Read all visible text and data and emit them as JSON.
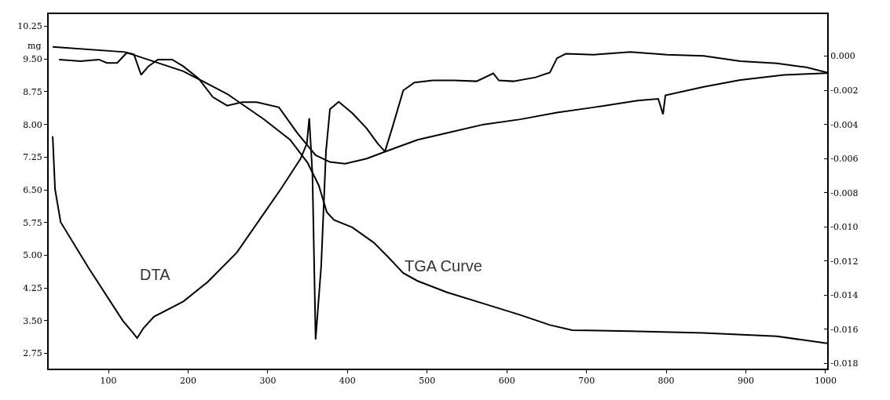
{
  "chart_data": {
    "type": "line",
    "ylabel": "mg",
    "xlim": [
      25,
      1002
    ],
    "xticks": [
      100,
      200,
      300,
      400,
      500,
      600,
      700,
      800,
      900,
      1000
    ],
    "ylim": [
      2.4,
      10.53
    ],
    "yticks": [
      10.25,
      {
        "value": 9.5,
        "label": "9.50"
      },
      8.75,
      {
        "value": 8,
        "label": "8.00"
      },
      7.25,
      {
        "value": 6.5,
        "label": "6.50"
      },
      5.75,
      {
        "value": 5,
        "label": "5.00"
      },
      4.25,
      {
        "value": 3.5,
        "label": "3.50"
      },
      2.75
    ],
    "y2lim": [
      -0.0183,
      0.00246
    ],
    "y2ticks": [
      {
        "value": 0,
        "label": "0.000"
      },
      {
        "value": -0.002,
        "label": "-0.002"
      },
      {
        "value": -0.004,
        "label": "-0.004"
      },
      {
        "value": -0.006,
        "label": "-0.006"
      },
      {
        "value": -0.008,
        "label": "-0.008"
      },
      {
        "value": -0.01,
        "label": "-0.010"
      },
      {
        "value": -0.012,
        "label": "-0.012"
      },
      {
        "value": -0.014,
        "label": "-0.014"
      },
      {
        "value": -0.016,
        "label": "-0.016"
      },
      {
        "value": -0.018,
        "label": "-0.018"
      }
    ],
    "grid": false,
    "marker": "none",
    "line_style": "solid",
    "annotations": [
      "DTA",
      "TGA Curve"
    ],
    "series": [
      {
        "color": "#000000",
        "x": [
          30,
          121,
          194,
          249,
          295,
          328,
          350,
          364,
          374,
          383,
          406,
          433,
          452,
          470,
          488,
          525,
          571,
          617,
          654,
          682,
          755,
          847,
          939,
          1002
        ],
        "values": [
          9.78,
          9.66,
          9.22,
          8.7,
          8.12,
          7.65,
          7.12,
          6.6,
          5.99,
          5.81,
          5.64,
          5.29,
          4.94,
          4.59,
          4.41,
          4.15,
          3.89,
          3.63,
          3.4,
          3.28,
          3.26,
          3.22,
          3.14,
          2.98
        ]
      },
      {
        "color": "#000000",
        "x": [
          30,
          33,
          40,
          75,
          118,
          130,
          136,
          144,
          157,
          194,
          224,
          261,
          316,
          341,
          349,
          352,
          356,
          360,
          367,
          373,
          378,
          389,
          406,
          424,
          438,
          447,
          456,
          470,
          484,
          507,
          534,
          562,
          583,
          590,
          608,
          636,
          654,
          663,
          674,
          709,
          755,
          801,
          847,
          893,
          939,
          976,
          1002
        ],
        "values": [
          7.73,
          6.51,
          5.76,
          4.71,
          3.5,
          3.24,
          3.1,
          3.33,
          3.59,
          3.94,
          4.38,
          5.06,
          6.51,
          7.21,
          7.56,
          8.14,
          6.86,
          3.07,
          4.76,
          7.38,
          8.35,
          8.52,
          8.26,
          7.91,
          7.56,
          7.38,
          7.91,
          8.78,
          8.96,
          9.01,
          9.01,
          8.99,
          9.17,
          9.01,
          8.99,
          9.08,
          9.19,
          9.52,
          9.62,
          9.6,
          9.66,
          9.6,
          9.57,
          9.45,
          9.4,
          9.31,
          9.19
        ]
      },
      {
        "color": "#000000",
        "axis": "y2",
        "x": [
          38,
          65,
          88,
          98,
          111,
          123,
          132,
          141,
          150,
          162,
          180,
          194,
          213,
          231,
          249,
          268,
          286,
          314,
          337,
          360,
          378,
          397,
          424,
          447,
          488,
          525,
          571,
          617,
          663,
          709,
          764,
          790,
          796,
          799,
          847,
          893,
          948,
          1002
        ],
        "values": [
          -0.0002,
          -0.0003,
          -0.0002,
          -0.0004,
          -0.0004,
          0.0002,
          0.0001,
          -0.0011,
          -0.0006,
          -0.0002,
          -0.0002,
          -0.0006,
          -0.0013,
          -0.0024,
          -0.0029,
          -0.0027,
          -0.0027,
          -0.003,
          -0.0045,
          -0.0058,
          -0.0062,
          -0.0063,
          -0.006,
          -0.0056,
          -0.0049,
          -0.0045,
          -0.004,
          -0.0037,
          -0.0033,
          -0.003,
          -0.0026,
          -0.0025,
          -0.0034,
          -0.0023,
          -0.0018,
          -0.0014,
          -0.0011,
          -0.001
        ]
      }
    ]
  }
}
